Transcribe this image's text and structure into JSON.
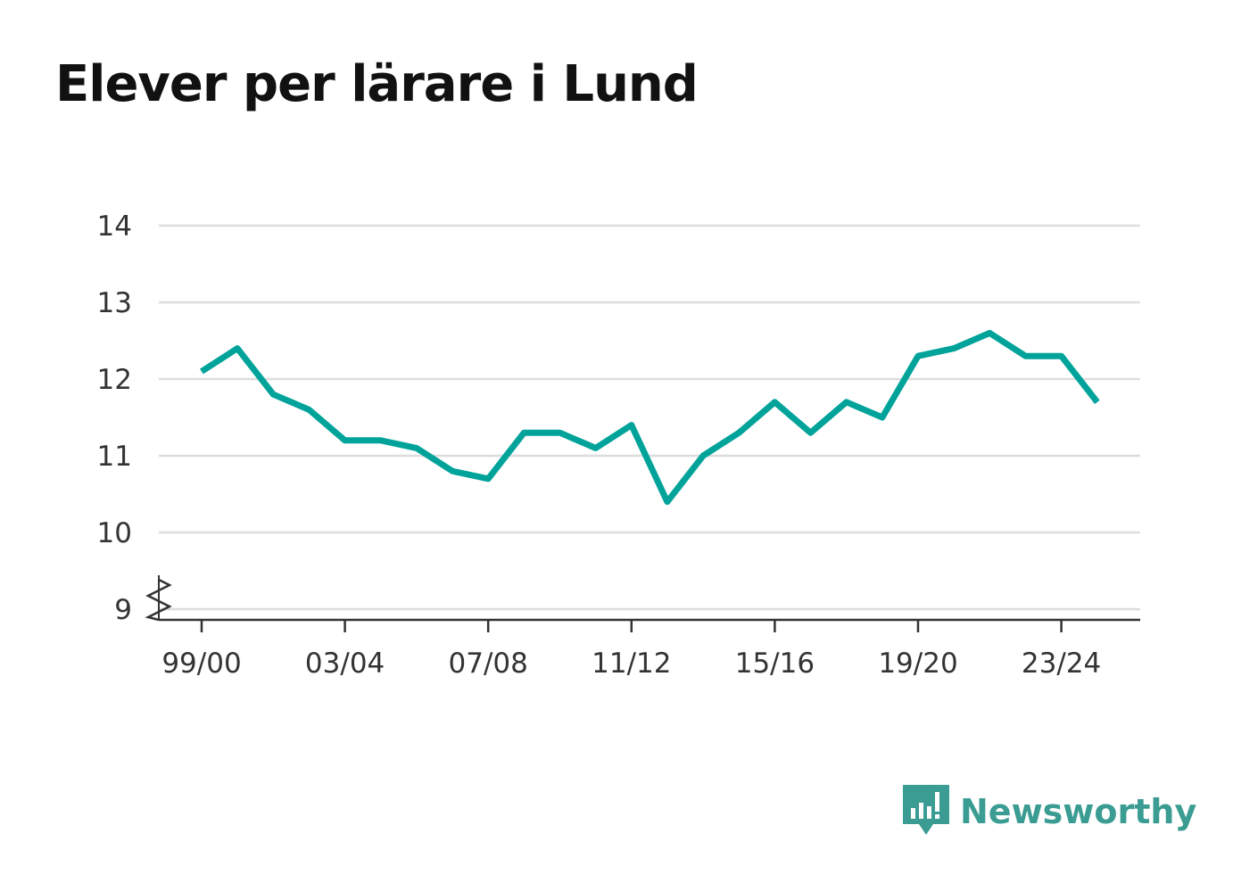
{
  "title": "Elever per lärare i Lund",
  "brand": {
    "name": "Newsworthy",
    "icon": "newsworthy-logo-icon",
    "color": "#3a9c92"
  },
  "chart_data": {
    "type": "line",
    "title": "Elever per lärare i Lund",
    "xlabel": "",
    "ylabel": "",
    "x": [
      "99/00",
      "00/01",
      "01/02",
      "02/03",
      "03/04",
      "04/05",
      "05/06",
      "06/07",
      "07/08",
      "08/09",
      "09/10",
      "10/11",
      "11/12",
      "12/13",
      "13/14",
      "14/15",
      "15/16",
      "16/17",
      "17/18",
      "18/19",
      "19/20",
      "20/21",
      "21/22",
      "22/23",
      "23/24",
      "24/25"
    ],
    "series": [
      {
        "color": "#00a39a",
        "values": [
          12.1,
          12.4,
          11.8,
          11.6,
          11.2,
          11.2,
          11.1,
          10.8,
          10.7,
          11.3,
          11.3,
          11.1,
          11.4,
          10.4,
          11.0,
          11.3,
          11.7,
          11.3,
          11.7,
          11.5,
          12.3,
          12.4,
          12.6,
          12.3,
          12.3,
          11.7
        ]
      }
    ],
    "x_tick_labels": [
      "99/00",
      "03/04",
      "07/08",
      "11/12",
      "15/16",
      "19/20",
      "23/24"
    ],
    "y_ticks": [
      9,
      10,
      11,
      12,
      13,
      14
    ],
    "ylim": [
      9,
      14
    ],
    "y_axis_break": true,
    "grid": true,
    "legend": "none"
  }
}
